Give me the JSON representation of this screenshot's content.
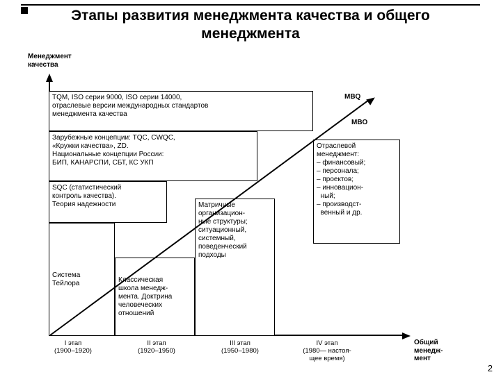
{
  "title": "Этапы развития менеджмента качества и общего менеджмента",
  "y_axis_label": "Менеджмент\nкачества",
  "x_axis_right_label": "Общий\nменедж-\nмент",
  "page_number": "2",
  "stages": [
    {
      "top": "I этап",
      "bottom": "(1900–1920)"
    },
    {
      "top": "II этап",
      "bottom": "(1920–1950)"
    },
    {
      "top": "III этап",
      "bottom": "(1950–1980)"
    },
    {
      "top": "IV этап",
      "bottom": "(1980— настоя-\nщее время)"
    }
  ],
  "boxes": {
    "tqm": "TQM, ISO серии 9000, ISO серии 14000,\nотраслевые версии международных стандартов\nменеджмента качества",
    "foreign": "Зарубежные концепции: TQC, CWQC,\n«Кружки качества», ZD.\nНациональные концепции России:\nБИП, КАНАРСПИ, СБТ, КС УКП",
    "sqc": "SQC (статистический\nконтроль качества).\nТеория надежности",
    "taylor": "Система\nТейлора",
    "classic": "Классическая\nшкола менедж-\nмента. Доктрина\nчеловеческих\nотношений",
    "matrix": "Матричные\nорганизацион-\nные структуры;\nситуационный,\nсистемный,\nповеденческий\nподходы",
    "sector": "Отраслевой\nменеджмент:\n– финансовый;\n– персонала;\n– проектов;\n– инновацион-\n  ный;\n– производст-\n  венный и др.",
    "mbq": "MBQ",
    "mbo": "MBO"
  },
  "colors": {
    "line": "#000000",
    "bg": "#ffffff"
  }
}
